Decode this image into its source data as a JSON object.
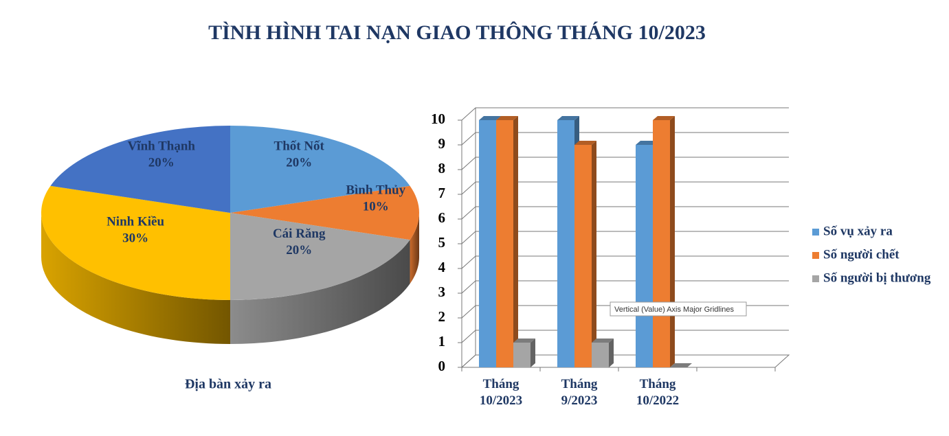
{
  "title": "TÌNH HÌNH TAI NẠN GIAO THÔNG THÁNG 10/2023",
  "tooltip": "Vertical (Value) Axis Major Gridlines",
  "chart_data": [
    {
      "type": "pie",
      "x_label": "Địa bàn xảy ra",
      "categories": [
        "Thốt Nốt",
        "Bình Thủy",
        "Cái Răng",
        "Ninh Kiều",
        "Vĩnh Thạnh"
      ],
      "values": [
        20,
        10,
        20,
        30,
        20
      ],
      "value_labels": [
        "20%",
        "10%",
        "20%",
        "30%",
        "20%"
      ],
      "colors": [
        "#5b9bd5",
        "#ed7d31",
        "#a5a5a5",
        "#ffc000",
        "#4472c4"
      ]
    },
    {
      "type": "bar3d",
      "categories": [
        "Tháng 10/2023",
        "Tháng 9/2023",
        "Tháng 10/2022",
        null
      ],
      "series": [
        {
          "name": "Số vụ xảy ra",
          "color": "#5b9bd5",
          "values": [
            10,
            10,
            9,
            null
          ]
        },
        {
          "name": "Số người chết",
          "color": "#ed7d31",
          "values": [
            10,
            9,
            10,
            null
          ]
        },
        {
          "name": "Số người bị thương",
          "color": "#a5a5a5",
          "values": [
            1,
            1,
            0,
            null
          ]
        }
      ],
      "ylim": [
        0,
        10
      ],
      "yticks": [
        0,
        1,
        2,
        3,
        4,
        5,
        6,
        7,
        8,
        9,
        10
      ],
      "grid": true,
      "legend": "right"
    }
  ]
}
